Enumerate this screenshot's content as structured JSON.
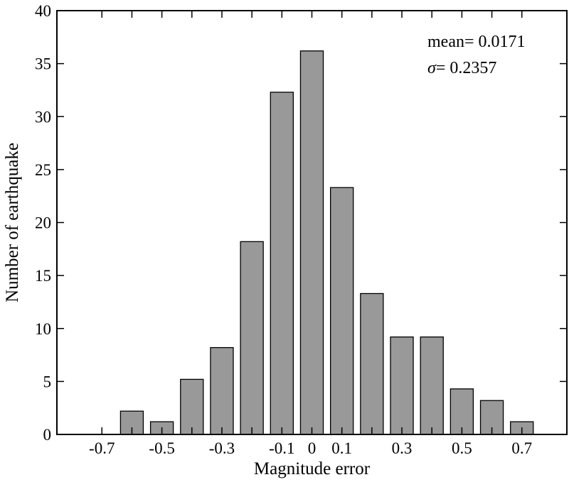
{
  "chart_data": {
    "type": "bar",
    "xlabel": "Magnitude error",
    "ylabel": "Number of earthquake",
    "x": [
      -0.7,
      -0.6,
      -0.5,
      -0.4,
      -0.3,
      -0.2,
      -0.1,
      0,
      0.1,
      0.2,
      0.3,
      0.4,
      0.5,
      0.6,
      0.7
    ],
    "values": [
      0,
      2.2,
      1.2,
      5.2,
      8.2,
      18.2,
      32.3,
      36.2,
      23.3,
      13.3,
      9.2,
      9.2,
      4.3,
      3.2,
      1.2
    ],
    "xlim": [
      -0.85,
      0.85
    ],
    "ylim": [
      0,
      40
    ],
    "yticks": [
      0,
      5,
      10,
      15,
      20,
      25,
      30,
      35,
      40
    ],
    "xtick_labels": [
      {
        "value": -0.7,
        "label": "-0.7"
      },
      {
        "value": -0.5,
        "label": "-0.5"
      },
      {
        "value": -0.3,
        "label": "-0.3"
      },
      {
        "value": -0.1,
        "label": "-0.1"
      },
      {
        "value": 0,
        "label": "0"
      },
      {
        "value": 0.1,
        "label": "0.1"
      },
      {
        "value": 0.3,
        "label": "0.3"
      },
      {
        "value": 0.5,
        "label": "0.5"
      },
      {
        "value": 0.7,
        "label": "0.7"
      }
    ],
    "bar_color": "#999999",
    "grid": false,
    "annotations": {
      "mean_label": "mean= 0.0171",
      "sigma_symbol": "σ",
      "sigma_value": "= 0.2357"
    }
  }
}
